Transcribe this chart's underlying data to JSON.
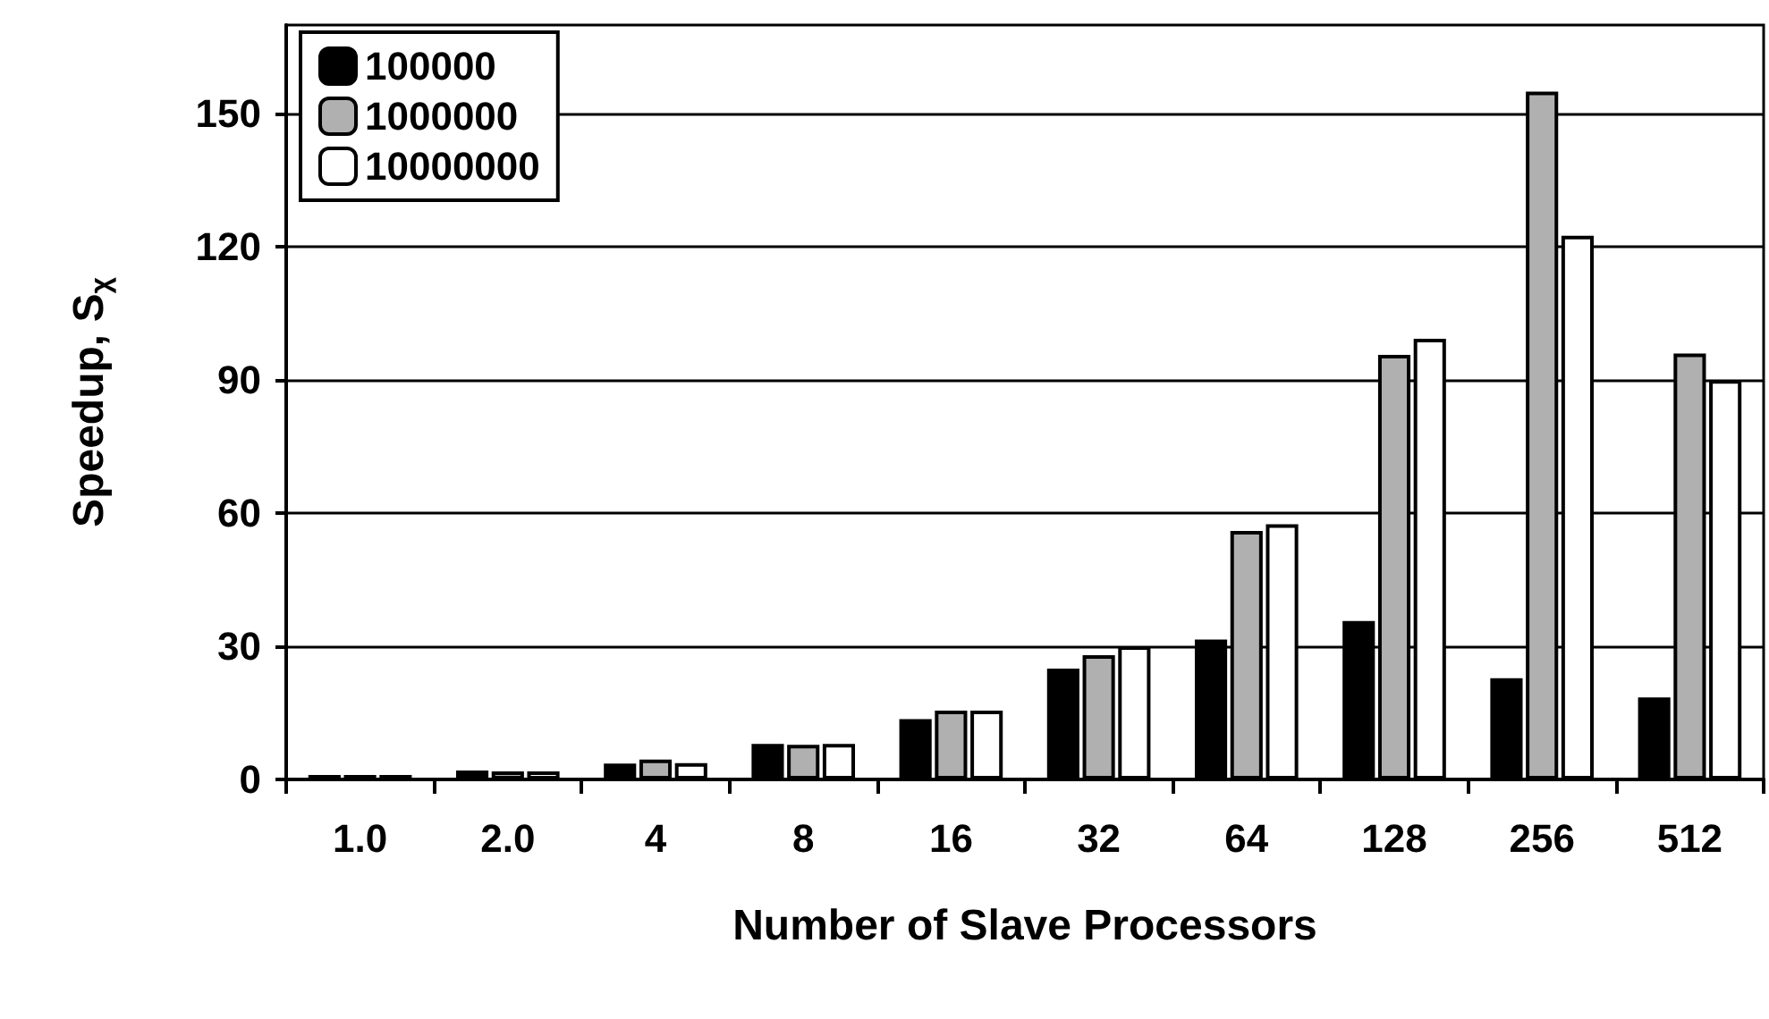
{
  "chart_data": {
    "type": "bar",
    "xlabel": "Number of Slave Processors",
    "ylabel": "Speedup, S$_{χ}$",
    "categories": [
      "1.0",
      "2.0",
      "4",
      "8",
      "16",
      "32",
      "64",
      "128",
      "256",
      "512"
    ],
    "series": [
      {
        "name": "100000",
        "color": "#000000",
        "values": [
          1,
          2,
          3.6,
          8,
          13.6,
          25,
          31.5,
          35.7,
          22.8,
          18.5
        ]
      },
      {
        "name": "1000000",
        "color": "#b0b0b0",
        "values": [
          1,
          1.8,
          4.5,
          7.8,
          15.5,
          28,
          56,
          95.7,
          155,
          96
        ]
      },
      {
        "name": "10000000",
        "color": "#ffffff",
        "values": [
          1,
          1.8,
          3.7,
          8,
          15.5,
          30,
          57.5,
          99.3,
          122.5,
          90
        ]
      }
    ],
    "ylim": [
      0,
      170
    ],
    "yticks": [
      0,
      30,
      60,
      90,
      120,
      150
    ],
    "grid": "y",
    "legend": "top left"
  }
}
